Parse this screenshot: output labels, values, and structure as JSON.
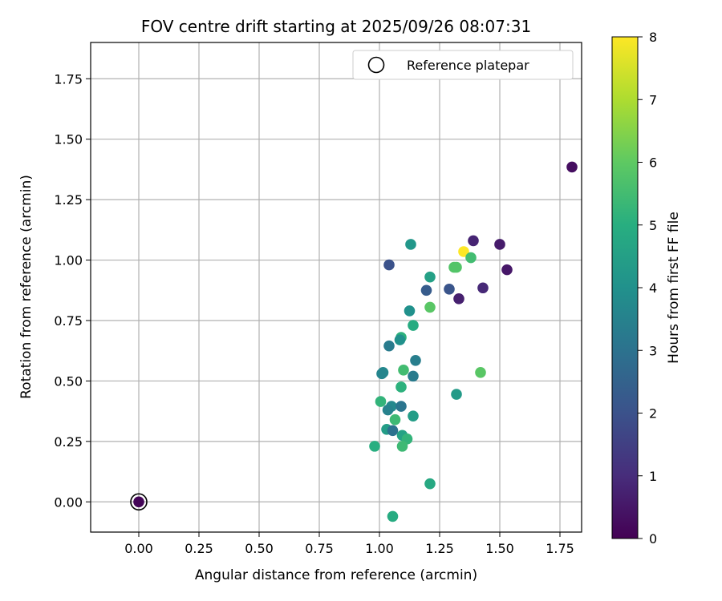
{
  "chart_data": {
    "type": "scatter",
    "title": "FOV centre drift starting at 2025/09/26 08:07:31",
    "xlabel": "Angular distance from reference (arcmin)",
    "ylabel": "Rotation from reference (arcmin)",
    "colorbar_label": "Hours from first FF file",
    "colormap": "viridis",
    "xlim": [
      -0.2,
      1.84
    ],
    "ylim": [
      -0.125,
      1.9
    ],
    "clim": [
      0,
      8
    ],
    "grid": true,
    "legend": {
      "position": "top-right",
      "entries": [
        "Reference platepar"
      ]
    },
    "x_ticks": [
      "0.00",
      "0.25",
      "0.50",
      "0.75",
      "1.00",
      "1.25",
      "1.50",
      "1.75"
    ],
    "y_ticks": [
      "0.00",
      "0.25",
      "0.50",
      "0.75",
      "1.00",
      "1.25",
      "1.50",
      "1.75"
    ],
    "colorbar_ticks": [
      "0",
      "1",
      "2",
      "3",
      "4",
      "5",
      "6",
      "7",
      "8"
    ],
    "reference_point": {
      "x": 0.0,
      "y": 0.0,
      "label": "Reference platepar"
    },
    "points": [
      {
        "x": 0.0,
        "y": 0.0,
        "hours": 0.1
      },
      {
        "x": 1.8,
        "y": 1.385,
        "hours": 0.3
      },
      {
        "x": 1.39,
        "y": 1.08,
        "hours": 0.8
      },
      {
        "x": 1.5,
        "y": 1.065,
        "hours": 0.6
      },
      {
        "x": 1.53,
        "y": 0.96,
        "hours": 0.5
      },
      {
        "x": 1.43,
        "y": 0.885,
        "hours": 0.9
      },
      {
        "x": 1.33,
        "y": 0.84,
        "hours": 0.7
      },
      {
        "x": 1.35,
        "y": 1.035,
        "hours": 8.0
      },
      {
        "x": 1.38,
        "y": 1.01,
        "hours": 5.5
      },
      {
        "x": 1.31,
        "y": 0.97,
        "hours": 5.8
      },
      {
        "x": 1.32,
        "y": 0.97,
        "hours": 5.8
      },
      {
        "x": 1.29,
        "y": 0.88,
        "hours": 2.1
      },
      {
        "x": 1.195,
        "y": 0.875,
        "hours": 2.3
      },
      {
        "x": 1.21,
        "y": 0.93,
        "hours": 4.5
      },
      {
        "x": 1.13,
        "y": 1.065,
        "hours": 4.2
      },
      {
        "x": 1.04,
        "y": 0.98,
        "hours": 2.0
      },
      {
        "x": 1.21,
        "y": 0.805,
        "hours": 5.9
      },
      {
        "x": 1.125,
        "y": 0.79,
        "hours": 4.0
      },
      {
        "x": 1.14,
        "y": 0.73,
        "hours": 4.9
      },
      {
        "x": 1.09,
        "y": 0.68,
        "hours": 5.1
      },
      {
        "x": 1.085,
        "y": 0.67,
        "hours": 4.0
      },
      {
        "x": 1.04,
        "y": 0.645,
        "hours": 3.3
      },
      {
        "x": 1.15,
        "y": 0.585,
        "hours": 3.4
      },
      {
        "x": 1.015,
        "y": 0.535,
        "hours": 3.7
      },
      {
        "x": 1.01,
        "y": 0.53,
        "hours": 3.6
      },
      {
        "x": 1.14,
        "y": 0.52,
        "hours": 3.3
      },
      {
        "x": 1.1,
        "y": 0.545,
        "hours": 5.5
      },
      {
        "x": 1.42,
        "y": 0.535,
        "hours": 5.9
      },
      {
        "x": 1.09,
        "y": 0.475,
        "hours": 5.1
      },
      {
        "x": 1.32,
        "y": 0.445,
        "hours": 4.3
      },
      {
        "x": 1.005,
        "y": 0.415,
        "hours": 5.2
      },
      {
        "x": 1.05,
        "y": 0.395,
        "hours": 3.7
      },
      {
        "x": 1.09,
        "y": 0.395,
        "hours": 3.1
      },
      {
        "x": 1.035,
        "y": 0.38,
        "hours": 3.5
      },
      {
        "x": 1.14,
        "y": 0.355,
        "hours": 4.4
      },
      {
        "x": 1.065,
        "y": 0.34,
        "hours": 5.4
      },
      {
        "x": 1.03,
        "y": 0.3,
        "hours": 4.4
      },
      {
        "x": 1.055,
        "y": 0.295,
        "hours": 3.0
      },
      {
        "x": 1.095,
        "y": 0.275,
        "hours": 4.6
      },
      {
        "x": 1.115,
        "y": 0.26,
        "hours": 5.2
      },
      {
        "x": 0.98,
        "y": 0.23,
        "hours": 5.0
      },
      {
        "x": 1.095,
        "y": 0.23,
        "hours": 5.4
      },
      {
        "x": 1.21,
        "y": 0.075,
        "hours": 4.8
      },
      {
        "x": 1.055,
        "y": -0.06,
        "hours": 4.9
      }
    ]
  }
}
